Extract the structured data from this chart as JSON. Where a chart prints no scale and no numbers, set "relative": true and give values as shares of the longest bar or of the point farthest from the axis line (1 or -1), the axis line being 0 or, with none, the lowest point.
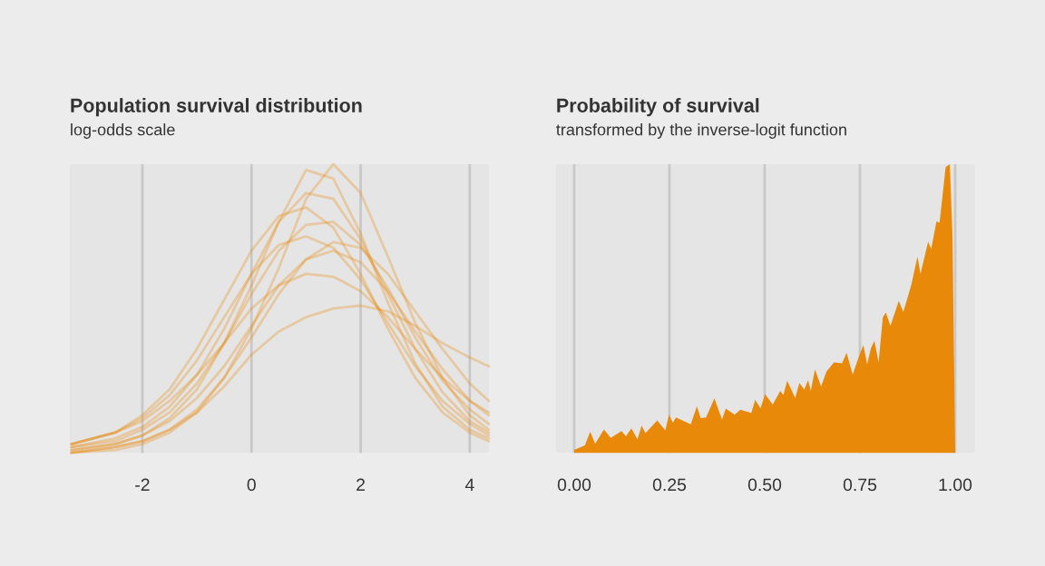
{
  "chart_data": [
    {
      "type": "line",
      "title": "Population survival distribution",
      "subtitle": "log-odds scale",
      "relative": true,
      "grid": "x",
      "xlim": [
        -3.33,
        4.35
      ],
      "xticks": [
        -2,
        0,
        2,
        4
      ],
      "tick_labels": "x",
      "line_style": "solid",
      "x": [
        -3.3,
        -2.5,
        -2,
        -1.5,
        -1,
        -0.5,
        0,
        0.5,
        1,
        1.5,
        2,
        2.5,
        3,
        3.5,
        4,
        4.35
      ],
      "series": [
        {
          "color": "#e8890a",
          "values": [
            0.0,
            0.01,
            0.03,
            0.07,
            0.14,
            0.26,
            0.43,
            0.64,
            0.88,
            1.0,
            0.9,
            0.68,
            0.45,
            0.26,
            0.13,
            0.08
          ]
        },
        {
          "color": "#e8890a",
          "values": [
            0.01,
            0.03,
            0.06,
            0.12,
            0.22,
            0.38,
            0.58,
            0.8,
            0.98,
            0.95,
            0.76,
            0.52,
            0.31,
            0.16,
            0.08,
            0.05
          ]
        },
        {
          "color": "#e8890a",
          "values": [
            0.02,
            0.05,
            0.09,
            0.16,
            0.27,
            0.43,
            0.62,
            0.8,
            0.9,
            0.88,
            0.74,
            0.55,
            0.36,
            0.21,
            0.11,
            0.07
          ]
        },
        {
          "color": "#e8890a",
          "values": [
            0.02,
            0.04,
            0.08,
            0.14,
            0.24,
            0.38,
            0.55,
            0.7,
            0.79,
            0.8,
            0.72,
            0.57,
            0.4,
            0.25,
            0.15,
            0.1
          ]
        },
        {
          "color": "#e8890a",
          "values": [
            0.03,
            0.07,
            0.12,
            0.2,
            0.32,
            0.47,
            0.62,
            0.72,
            0.75,
            0.71,
            0.6,
            0.45,
            0.3,
            0.18,
            0.1,
            0.06
          ]
        },
        {
          "color": "#e8890a",
          "values": [
            0.01,
            0.03,
            0.06,
            0.11,
            0.19,
            0.3,
            0.44,
            0.58,
            0.67,
            0.7,
            0.66,
            0.56,
            0.42,
            0.29,
            0.18,
            0.13
          ]
        },
        {
          "color": "#e8890a",
          "values": [
            0.03,
            0.07,
            0.11,
            0.18,
            0.27,
            0.38,
            0.5,
            0.58,
            0.62,
            0.61,
            0.56,
            0.47,
            0.36,
            0.26,
            0.18,
            0.14
          ]
        },
        {
          "color": "#e8890a",
          "values": [
            0.0,
            0.02,
            0.04,
            0.08,
            0.14,
            0.23,
            0.34,
            0.42,
            0.47,
            0.5,
            0.51,
            0.49,
            0.44,
            0.38,
            0.33,
            0.3
          ]
        },
        {
          "color": "#e8890a",
          "values": [
            0.03,
            0.07,
            0.13,
            0.22,
            0.36,
            0.53,
            0.7,
            0.82,
            0.85,
            0.78,
            0.62,
            0.43,
            0.26,
            0.14,
            0.07,
            0.04
          ]
        },
        {
          "color": "#e8890a",
          "values": [
            0.0,
            0.02,
            0.04,
            0.08,
            0.15,
            0.26,
            0.4,
            0.55,
            0.67,
            0.73,
            0.71,
            0.62,
            0.49,
            0.36,
            0.24,
            0.18
          ]
        }
      ]
    },
    {
      "type": "area",
      "title": "Probability of survival",
      "subtitle": "transformed by the inverse-logit function",
      "relative": true,
      "grid": "x",
      "xlim": [
        -0.048,
        1.052
      ],
      "tick_labels": "x",
      "xticks": [
        {
          "value": 0,
          "label": "0.00"
        },
        {
          "value": 0.25,
          "label": "0.25"
        },
        {
          "value": 0.5,
          "label": "0.50"
        },
        {
          "value": 0.75,
          "label": "0.75"
        },
        {
          "value": 1,
          "label": "1.00"
        }
      ],
      "x": [
        0.0,
        0.028,
        0.042,
        0.055,
        0.078,
        0.096,
        0.124,
        0.136,
        0.15,
        0.166,
        0.177,
        0.187,
        0.218,
        0.239,
        0.249,
        0.259,
        0.267,
        0.306,
        0.322,
        0.332,
        0.346,
        0.368,
        0.388,
        0.398,
        0.421,
        0.436,
        0.465,
        0.475,
        0.489,
        0.501,
        0.521,
        0.541,
        0.549,
        0.559,
        0.58,
        0.591,
        0.604,
        0.614,
        0.621,
        0.632,
        0.648,
        0.662,
        0.682,
        0.703,
        0.715,
        0.731,
        0.747,
        0.759,
        0.769,
        0.779,
        0.788,
        0.799,
        0.81,
        0.818,
        0.83,
        0.852,
        0.864,
        0.885,
        0.901,
        0.909,
        0.929,
        0.937,
        0.951,
        0.959,
        0.975,
        0.986,
        0.993,
        1.0
      ],
      "series": [
        {
          "color": "#e8890a",
          "values": [
            0.01,
            0.026,
            0.073,
            0.031,
            0.081,
            0.052,
            0.075,
            0.057,
            0.085,
            0.047,
            0.094,
            0.068,
            0.112,
            0.078,
            0.132,
            0.104,
            0.122,
            0.099,
            0.161,
            0.12,
            0.122,
            0.188,
            0.115,
            0.153,
            0.132,
            0.149,
            0.138,
            0.184,
            0.154,
            0.203,
            0.167,
            0.214,
            0.2,
            0.25,
            0.19,
            0.242,
            0.219,
            0.252,
            0.214,
            0.289,
            0.229,
            0.281,
            0.313,
            0.31,
            0.346,
            0.271,
            0.333,
            0.373,
            0.307,
            0.363,
            0.388,
            0.313,
            0.469,
            0.486,
            0.44,
            0.526,
            0.488,
            0.583,
            0.679,
            0.62,
            0.731,
            0.706,
            0.802,
            0.797,
            0.99,
            1.0,
            0.75,
            0
          ]
        }
      ]
    }
  ]
}
